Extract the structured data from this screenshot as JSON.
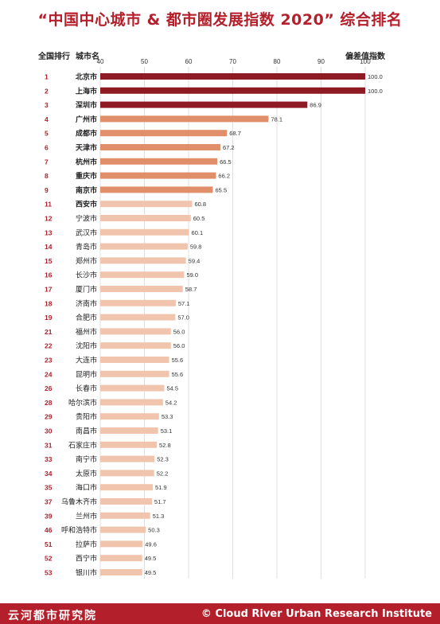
{
  "title": "“中国中心城市 & 都市圈发展指数 2020” 综合排名",
  "header": {
    "rank_label": "全国排行",
    "city_label": "城市名",
    "value_label": "偏差值指数"
  },
  "footer": {
    "brand_cn": "云河都市研究院",
    "brand_en": "© Cloud River Urban Research Institute"
  },
  "colors": {
    "title": "#b3202b",
    "rank": "#b3202b",
    "tier1": "#8e1b23",
    "tier2": "#e08f6a",
    "tier3": "#f1c5ad",
    "footer_bg": "#b3202b"
  },
  "chart_data": {
    "type": "bar",
    "orientation": "horizontal",
    "xlim": [
      40,
      100
    ],
    "xticks": [
      40,
      50,
      60,
      70,
      80,
      90,
      100
    ],
    "grid": true,
    "rows": [
      {
        "rank": "1",
        "city": "北京市",
        "value": 100.0,
        "label": "100.0",
        "tier": 1
      },
      {
        "rank": "2",
        "city": "上海市",
        "value": 100.0,
        "label": "100.0",
        "tier": 1
      },
      {
        "rank": "3",
        "city": "深圳市",
        "value": 86.9,
        "label": "86.9",
        "tier": 1
      },
      {
        "rank": "4",
        "city": "广州市",
        "value": 78.1,
        "label": "78.1",
        "tier": 2
      },
      {
        "rank": "5",
        "city": "成都市",
        "value": 68.7,
        "label": "68.7",
        "tier": 2
      },
      {
        "rank": "6",
        "city": "天津市",
        "value": 67.2,
        "label": "67.2",
        "tier": 2
      },
      {
        "rank": "7",
        "city": "杭州市",
        "value": 66.5,
        "label": "66.5",
        "tier": 2
      },
      {
        "rank": "8",
        "city": "重庆市",
        "value": 66.2,
        "label": "66.2",
        "tier": 2
      },
      {
        "rank": "9",
        "city": "南京市",
        "value": 65.5,
        "label": "65.5",
        "tier": 2
      },
      {
        "rank": "11",
        "city": "西安市",
        "value": 60.8,
        "label": "60.8",
        "tier": 3
      },
      {
        "rank": "12",
        "city": "宁波市",
        "value": 60.5,
        "label": "60.5",
        "tier": 3
      },
      {
        "rank": "13",
        "city": "武汉市",
        "value": 60.1,
        "label": "60.1",
        "tier": 3
      },
      {
        "rank": "14",
        "city": "青岛市",
        "value": 59.8,
        "label": "59.8",
        "tier": 3
      },
      {
        "rank": "15",
        "city": "郑州市",
        "value": 59.4,
        "label": "59.4",
        "tier": 3
      },
      {
        "rank": "16",
        "city": "长沙市",
        "value": 59.0,
        "label": "59.0",
        "tier": 3
      },
      {
        "rank": "17",
        "city": "厦门市",
        "value": 58.7,
        "label": "58.7",
        "tier": 3
      },
      {
        "rank": "18",
        "city": "济南市",
        "value": 57.1,
        "label": "57.1",
        "tier": 3
      },
      {
        "rank": "19",
        "city": "合肥市",
        "value": 57.0,
        "label": "57.0",
        "tier": 3
      },
      {
        "rank": "21",
        "city": "福州市",
        "value": 56.0,
        "label": "56.0",
        "tier": 3
      },
      {
        "rank": "22",
        "city": "沈阳市",
        "value": 56.0,
        "label": "56.0",
        "tier": 3
      },
      {
        "rank": "23",
        "city": "大连市",
        "value": 55.6,
        "label": "55.6",
        "tier": 3
      },
      {
        "rank": "24",
        "city": "昆明市",
        "value": 55.6,
        "label": "55.6",
        "tier": 3
      },
      {
        "rank": "26",
        "city": "长春市",
        "value": 54.5,
        "label": "54.5",
        "tier": 3
      },
      {
        "rank": "28",
        "city": "哈尔滨市",
        "value": 54.2,
        "label": "54.2",
        "tier": 3
      },
      {
        "rank": "29",
        "city": "贵阳市",
        "value": 53.3,
        "label": "53.3",
        "tier": 3
      },
      {
        "rank": "30",
        "city": "南昌市",
        "value": 53.1,
        "label": "53.1",
        "tier": 3
      },
      {
        "rank": "31",
        "city": "石家庄市",
        "value": 52.8,
        "label": "52.8",
        "tier": 3
      },
      {
        "rank": "33",
        "city": "南宁市",
        "value": 52.3,
        "label": "52.3",
        "tier": 3
      },
      {
        "rank": "34",
        "city": "太原市",
        "value": 52.2,
        "label": "52.2",
        "tier": 3
      },
      {
        "rank": "35",
        "city": "海口市",
        "value": 51.9,
        "label": "51.9",
        "tier": 3
      },
      {
        "rank": "37",
        "city": "乌鲁木齐市",
        "value": 51.7,
        "label": "51.7",
        "tier": 3
      },
      {
        "rank": "39",
        "city": "兰州市",
        "value": 51.3,
        "label": "51.3",
        "tier": 3
      },
      {
        "rank": "46",
        "city": "呼和浩特市",
        "value": 50.3,
        "label": "50.3",
        "tier": 3
      },
      {
        "rank": "51",
        "city": "拉萨市",
        "value": 49.6,
        "label": "49.6",
        "tier": 3
      },
      {
        "rank": "52",
        "city": "西宁市",
        "value": 49.5,
        "label": "49.5",
        "tier": 3
      },
      {
        "rank": "53",
        "city": "银川市",
        "value": 49.5,
        "label": "49.5",
        "tier": 3
      }
    ]
  }
}
